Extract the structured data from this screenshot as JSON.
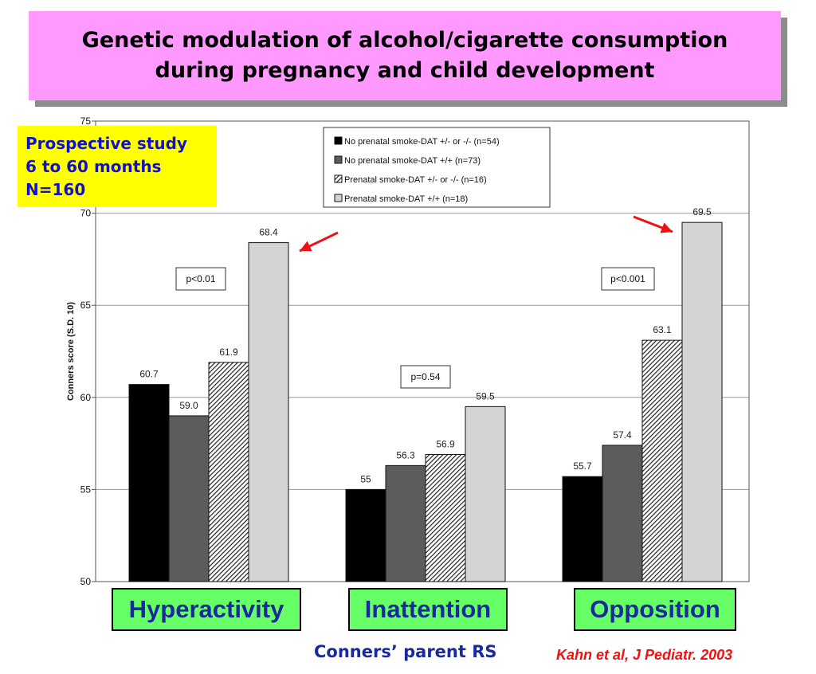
{
  "title": {
    "line1": "Genetic modulation of alcohol/cigarette consumption",
    "line2": "during pregnancy and child development"
  },
  "study_info": {
    "line1": "Prospective study",
    "line2": "6 to 60 months",
    "line3": "N=160"
  },
  "footer": {
    "scale": "Conners’ parent RS",
    "citation": "Kahn et al, J Pediatr. 2003"
  },
  "colors": {
    "title_bg": "#ff99ff",
    "study_bg": "#ffff00",
    "category_bg": "#66ff66",
    "label_text": "#1a2a9a",
    "citation": "#ee1111",
    "arrow": "#ee1111"
  },
  "chart_data": {
    "type": "bar",
    "ylabel": "Conners score (S.D. 10)",
    "ylim": [
      50,
      75
    ],
    "yticks": [
      "50",
      "55",
      "60",
      "65",
      "70",
      "75"
    ],
    "grid": true,
    "legend_position": "top-right",
    "categories": [
      "Hyperactivity",
      "Inattention",
      "Opposition"
    ],
    "series": [
      {
        "name": "No prenatal smoke-DAT +/- or -/-  (n=54)",
        "pattern": "solid-black",
        "values": [
          60.7,
          55,
          55.7
        ],
        "labels": [
          "60.7",
          "55",
          "55.7"
        ]
      },
      {
        "name": "No prenatal smoke-DAT +/+  (n=73)",
        "pattern": "solid-gray",
        "values": [
          59.0,
          56.3,
          57.4
        ],
        "labels": [
          "59.0",
          "56.3",
          "57.4"
        ]
      },
      {
        "name": "Prenatal smoke-DAT +/- or -/-  (n=16)",
        "pattern": "hatched",
        "values": [
          61.9,
          56.9,
          63.1
        ],
        "labels": [
          "61.9",
          "56.9",
          "63.1"
        ]
      },
      {
        "name": "Prenatal smoke-DAT +/+ (n=18)",
        "pattern": "light-gray",
        "values": [
          68.4,
          59.5,
          69.5
        ],
        "labels": [
          "68.4",
          "59.5",
          "69.5"
        ]
      }
    ],
    "annotations": {
      "pvalues": [
        "p<0.01",
        "p=0.54",
        "p<0.001"
      ],
      "arrows_point_to": [
        {
          "category": "Hyperactivity",
          "series": 3
        },
        {
          "category": "Opposition",
          "series": 3
        }
      ]
    }
  }
}
